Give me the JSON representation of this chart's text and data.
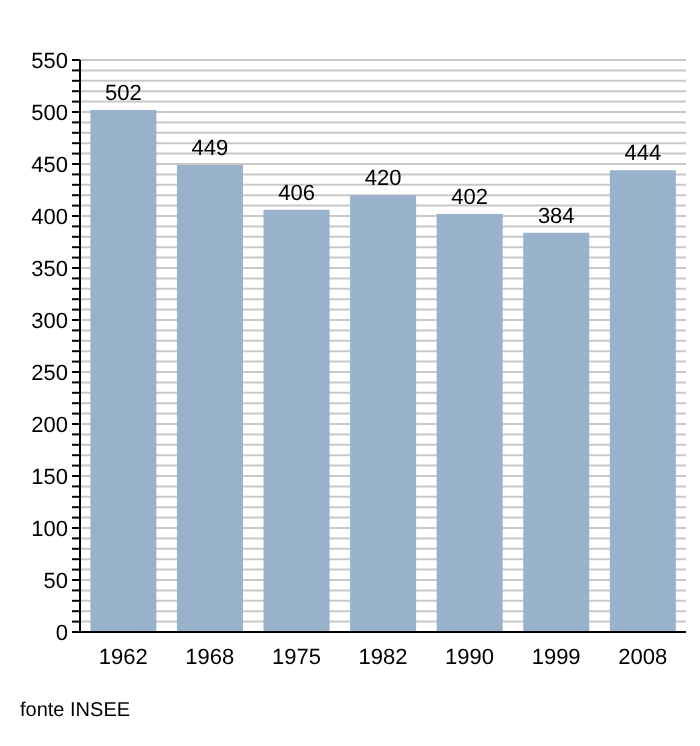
{
  "chart_data": {
    "type": "bar",
    "categories": [
      "1962",
      "1968",
      "1975",
      "1982",
      "1990",
      "1999",
      "2008"
    ],
    "values": [
      502,
      449,
      406,
      420,
      402,
      384,
      444
    ],
    "color": "#98b2cc",
    "data_labels": true,
    "grid": "y",
    "ylim": [
      0,
      550
    ],
    "yticks": [
      0,
      {
        "value": 10,
        "label": null
      },
      {
        "value": 20,
        "label": null
      },
      {
        "value": 30,
        "label": null
      },
      {
        "value": 40,
        "label": null
      },
      50,
      {
        "value": 60,
        "label": null
      },
      {
        "value": 70,
        "label": null
      },
      {
        "value": 80,
        "label": null
      },
      {
        "value": 90,
        "label": null
      },
      100,
      {
        "value": 110,
        "label": null
      },
      {
        "value": 120,
        "label": null
      },
      {
        "value": 130,
        "label": null
      },
      {
        "value": 140,
        "label": null
      },
      150,
      {
        "value": 160,
        "label": null
      },
      {
        "value": 170,
        "label": null
      },
      {
        "value": 180,
        "label": null
      },
      {
        "value": 190,
        "label": null
      },
      200,
      {
        "value": 210,
        "label": null
      },
      {
        "value": 220,
        "label": null
      },
      {
        "value": 230,
        "label": null
      },
      {
        "value": 240,
        "label": null
      },
      250,
      {
        "value": 260,
        "label": null
      },
      {
        "value": 270,
        "label": null
      },
      {
        "value": 280,
        "label": null
      },
      {
        "value": 290,
        "label": null
      },
      300,
      {
        "value": 310,
        "label": null
      },
      {
        "value": 320,
        "label": null
      },
      {
        "value": 330,
        "label": null
      },
      {
        "value": 340,
        "label": null
      },
      350,
      {
        "value": 360,
        "label": null
      },
      {
        "value": 370,
        "label": null
      },
      {
        "value": 380,
        "label": null
      },
      {
        "value": 390,
        "label": null
      },
      400,
      {
        "value": 410,
        "label": null
      },
      {
        "value": 420,
        "label": null
      },
      {
        "value": 430,
        "label": null
      },
      {
        "value": 440,
        "label": null
      },
      450,
      {
        "value": 460,
        "label": null
      },
      {
        "value": 470,
        "label": null
      },
      {
        "value": 480,
        "label": null
      },
      {
        "value": 490,
        "label": null
      },
      500,
      {
        "value": 510,
        "label": null
      },
      {
        "value": 520,
        "label": null
      },
      {
        "value": 530,
        "label": null
      },
      {
        "value": 540,
        "label": null
      },
      550
    ],
    "annotations": [
      "fonte INSEE"
    ]
  }
}
